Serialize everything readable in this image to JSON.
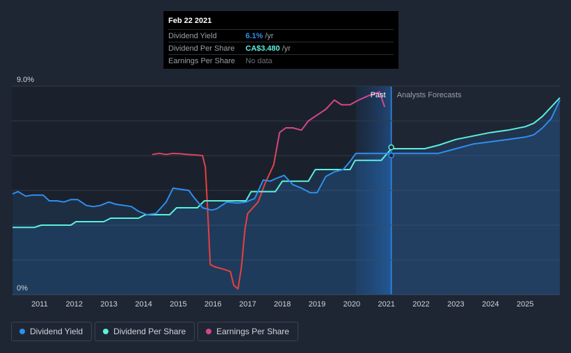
{
  "tooltip": {
    "date": "Feb 22 2021",
    "rows": [
      {
        "label": "Dividend Yield",
        "value": "6.1%",
        "unit": "/yr",
        "color": "#2e8ff0"
      },
      {
        "label": "Dividend Per Share",
        "value": "CA$3.480",
        "unit": "/yr",
        "color": "#5cf0dc"
      },
      {
        "label": "Earnings Per Share",
        "value": "No data",
        "unit": "",
        "color": "#6c727a"
      }
    ]
  },
  "legend": [
    {
      "label": "Dividend Yield",
      "color": "#2e8ff0"
    },
    {
      "label": "Dividend Per Share",
      "color": "#5cf0dc"
    },
    {
      "label": "Earnings Per Share",
      "color": "#d6458e"
    }
  ],
  "chart_data": {
    "type": "line",
    "ylim": [
      0,
      9.0
    ],
    "xlim": [
      2010.2,
      2026.0
    ],
    "y_tick_labels": [
      {
        "v": 9.0,
        "label": "9.0%"
      },
      {
        "v": 0,
        "label": "0%"
      }
    ],
    "x_tick_labels": [
      "2011",
      "2012",
      "2013",
      "2014",
      "2015",
      "2016",
      "2017",
      "2018",
      "2019",
      "2020",
      "2021",
      "2022",
      "2023",
      "2024",
      "2025"
    ],
    "past_label": "Past",
    "forecast_label": "Analysts Forecasts",
    "past_end": 2021.14,
    "forecast_band_start": 2020.12,
    "grid": true,
    "series": [
      {
        "name": "Dividend Yield",
        "color": "#2e8ff0",
        "x": [
          2010.22,
          2010.38,
          2010.6,
          2010.8,
          2011.1,
          2011.28,
          2011.5,
          2011.7,
          2011.9,
          2012.1,
          2012.35,
          2012.55,
          2012.75,
          2013.0,
          2013.2,
          2013.45,
          2013.65,
          2013.85,
          2014.1,
          2014.35,
          2014.5,
          2014.65,
          2014.85,
          2015.05,
          2015.3,
          2015.45,
          2015.7,
          2015.95,
          2016.1,
          2016.4,
          2016.7,
          2016.95,
          2017.2,
          2017.45,
          2017.65,
          2017.8,
          2018.05,
          2018.3,
          2018.55,
          2018.8,
          2019.0,
          2019.25,
          2019.5,
          2019.75,
          2019.95,
          2020.12,
          2020.3,
          2020.6,
          2020.8,
          2021.14,
          2021.5,
          2022.1,
          2022.5,
          2023.0,
          2023.5,
          2024.0,
          2024.5,
          2025.0,
          2025.25,
          2025.5,
          2025.75,
          2026.0
        ],
        "y": [
          4.35,
          4.45,
          4.25,
          4.3,
          4.3,
          4.05,
          4.05,
          4.0,
          4.1,
          4.1,
          3.85,
          3.8,
          3.85,
          4.0,
          3.9,
          3.85,
          3.8,
          3.6,
          3.45,
          3.5,
          3.75,
          4.0,
          4.6,
          4.55,
          4.5,
          4.2,
          3.75,
          3.65,
          3.7,
          4.0,
          3.95,
          4.0,
          4.15,
          4.95,
          4.9,
          5.0,
          5.15,
          4.75,
          4.6,
          4.4,
          4.4,
          5.1,
          5.3,
          5.4,
          5.75,
          6.1,
          6.1,
          6.1,
          6.1,
          6.1,
          6.1,
          6.1,
          6.1,
          6.3,
          6.5,
          6.6,
          6.7,
          6.8,
          6.9,
          7.2,
          7.6,
          8.4
        ]
      },
      {
        "name": "Dividend Per Share",
        "color": "#5cf0dc",
        "x": [
          2010.22,
          2010.85,
          2011.05,
          2011.9,
          2012.05,
          2012.85,
          2013.05,
          2013.85,
          2014.05,
          2014.75,
          2014.95,
          2015.55,
          2015.75,
          2016.95,
          2017.1,
          2017.8,
          2018.0,
          2018.75,
          2018.95,
          2019.95,
          2020.1,
          2020.85,
          2021.14,
          2021.5,
          2022.1,
          2022.5,
          2023.0,
          2023.5,
          2024.0,
          2024.5,
          2025.0,
          2025.25,
          2025.5,
          2025.75,
          2026.0
        ],
        "y": [
          2.9,
          2.9,
          3.0,
          3.0,
          3.15,
          3.15,
          3.3,
          3.3,
          3.45,
          3.45,
          3.75,
          3.75,
          4.05,
          4.05,
          4.45,
          4.45,
          4.9,
          4.9,
          5.4,
          5.4,
          5.8,
          5.8,
          6.3,
          6.3,
          6.3,
          6.45,
          6.7,
          6.85,
          7.0,
          7.1,
          7.25,
          7.4,
          7.7,
          8.1,
          8.5
        ]
      },
      {
        "name": "Earnings Per Share",
        "color": "#d6458e",
        "color_low": "#e84040",
        "x": [
          2014.25,
          2014.45,
          2014.65,
          2014.85,
          2015.05,
          2015.25,
          2015.5,
          2015.7,
          2015.78,
          2015.85,
          2015.92,
          2016.05,
          2016.3,
          2016.5,
          2016.6,
          2016.72,
          2016.82,
          2016.92,
          2017.0,
          2017.3,
          2017.5,
          2017.75,
          2017.92,
          2018.1,
          2018.3,
          2018.55,
          2018.75,
          2018.95,
          2019.25,
          2019.5,
          2019.7,
          2019.95,
          2020.2,
          2020.5,
          2020.8,
          2020.95
        ],
        "y": [
          6.05,
          6.1,
          6.05,
          6.1,
          6.08,
          6.05,
          6.03,
          6.0,
          5.5,
          3.5,
          1.3,
          1.2,
          1.1,
          1.0,
          0.4,
          0.25,
          1.2,
          2.8,
          3.5,
          4.0,
          4.8,
          5.6,
          7.0,
          7.2,
          7.2,
          7.1,
          7.5,
          7.7,
          8.0,
          8.4,
          8.2,
          8.2,
          8.4,
          8.6,
          8.75,
          8.1
        ]
      }
    ]
  }
}
